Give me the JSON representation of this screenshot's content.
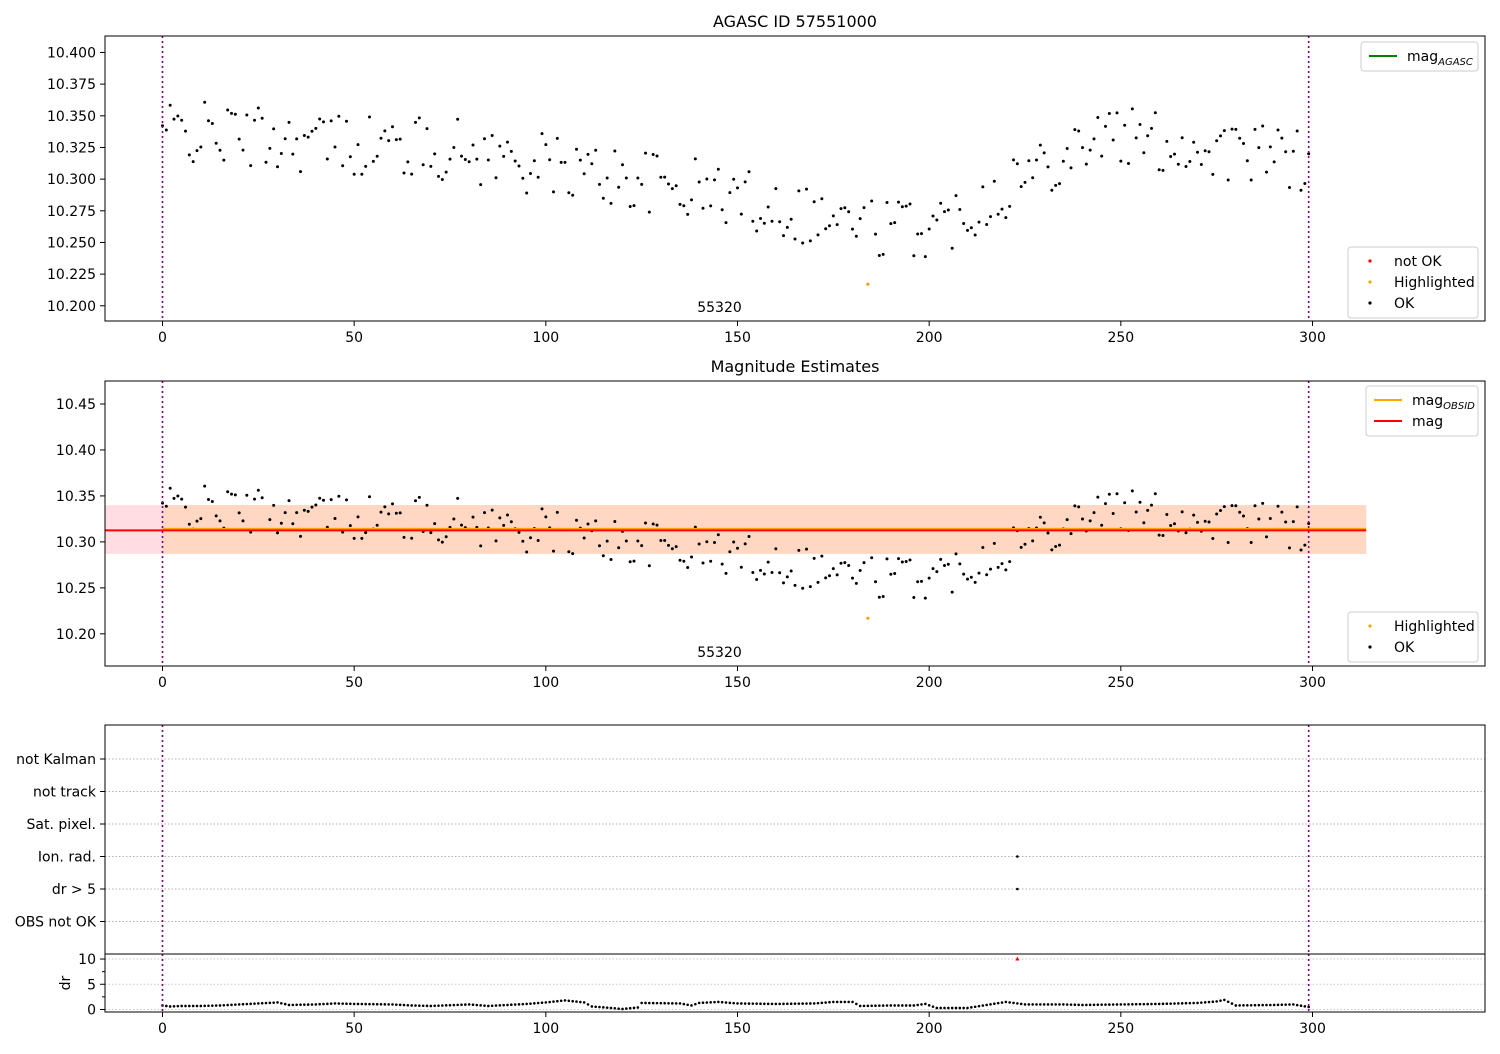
{
  "chart_data": [
    {
      "type": "scatter",
      "title": "AGASC ID 57551000",
      "xlim": [
        -15,
        345
      ],
      "ylim": [
        10.188,
        10.413
      ],
      "x_ticks": [
        "0",
        "50",
        "100",
        "150",
        "200",
        "250",
        "300"
      ],
      "y_ticks": [
        "10.200",
        "10.225",
        "10.250",
        "10.275",
        "10.300",
        "10.325",
        "10.350",
        "10.375",
        "10.400"
      ],
      "vlines": [
        0,
        299
      ],
      "obsid_label": {
        "text": "55320",
        "x": 150
      },
      "legend_upper": [
        {
          "label": "mag",
          "sub": "AGASC",
          "color": "#008000",
          "kind": "line"
        }
      ],
      "legend_lower": [
        {
          "label": "not OK",
          "color": "#ff0000",
          "kind": "dot"
        },
        {
          "label": "Highlighted",
          "color": "#ffa500",
          "kind": "dot"
        },
        {
          "label": "OK",
          "color": "#000000",
          "kind": "dot"
        }
      ],
      "series": [
        {
          "name": "Highlighted",
          "color": "#ffa500",
          "points": [
            [
              184,
              10.217
            ]
          ]
        }
      ]
    },
    {
      "type": "scatter",
      "title": "Magnitude Estimates",
      "xlim": [
        -15,
        345
      ],
      "ylim": [
        10.165,
        10.475
      ],
      "x_ticks": [
        "0",
        "50",
        "100",
        "150",
        "200",
        "250",
        "300"
      ],
      "y_ticks": [
        "10.20",
        "10.25",
        "10.30",
        "10.35",
        "10.40",
        "10.45"
      ],
      "vlines": [
        0,
        299
      ],
      "obsid_label": {
        "text": "55320",
        "x": 150
      },
      "mag": 10.313,
      "mag_band_outer": [
        -15,
        314,
        10.287,
        10.34
      ],
      "mag_band_inner": [
        0,
        314,
        10.287,
        10.34
      ],
      "legend_upper": [
        {
          "label": "mag",
          "sub": "OBSID",
          "color": "#ffa500",
          "kind": "line"
        },
        {
          "label": "mag",
          "sub": "",
          "color": "#ff0000",
          "kind": "line"
        }
      ],
      "legend_lower": [
        {
          "label": "Highlighted",
          "color": "#ffa500",
          "kind": "dot"
        },
        {
          "label": "OK",
          "color": "#000000",
          "kind": "dot"
        }
      ],
      "series": [
        {
          "name": "Highlighted",
          "color": "#ffa500",
          "points": [
            [
              184,
              10.217
            ]
          ]
        }
      ]
    },
    {
      "type": "scatter",
      "xlim": [
        -15,
        345
      ],
      "x_ticks": [
        "0",
        "50",
        "100",
        "150",
        "200",
        "250",
        "300"
      ],
      "vlines": [
        0,
        299
      ],
      "flag_rows": [
        "not Kalman",
        "not track",
        "Sat. pixel.",
        "Ion. rad.",
        "dr > 5",
        "OBS not OK"
      ],
      "flag_points": [
        {
          "row": "Ion. rad.",
          "x": 223
        },
        {
          "row": "dr > 5",
          "x": 223
        }
      ],
      "dr": {
        "ylabel": "dr",
        "ylim": [
          -0.5,
          11
        ],
        "y_ticks": [
          "0",
          "5",
          "10"
        ],
        "red_points": [
          [
            223,
            10
          ]
        ],
        "points": [
          [
            0,
            0.8
          ],
          [
            2,
            0.6
          ],
          [
            5,
            0.7
          ],
          [
            10,
            0.7
          ],
          [
            15,
            0.8
          ],
          [
            20,
            1.0
          ],
          [
            25,
            1.2
          ],
          [
            30,
            1.4
          ],
          [
            33,
            0.9
          ],
          [
            40,
            1.0
          ],
          [
            45,
            1.2
          ],
          [
            50,
            1.1
          ],
          [
            60,
            1.0
          ],
          [
            65,
            0.8
          ],
          [
            70,
            0.7
          ],
          [
            80,
            1.0
          ],
          [
            85,
            0.7
          ],
          [
            90,
            0.9
          ],
          [
            95,
            1.1
          ],
          [
            100,
            1.4
          ],
          [
            105,
            1.8
          ],
          [
            110,
            1.4
          ],
          [
            112,
            0.6
          ],
          [
            117,
            0.3
          ],
          [
            120,
            0.1
          ],
          [
            124,
            0.4
          ],
          [
            125,
            1.3
          ],
          [
            135,
            1.2
          ],
          [
            138,
            0.8
          ],
          [
            140,
            1.3
          ],
          [
            145,
            1.5
          ],
          [
            150,
            1.2
          ],
          [
            160,
            1.1
          ],
          [
            170,
            1.2
          ],
          [
            175,
            1.5
          ],
          [
            180,
            1.5
          ],
          [
            182,
            0.7
          ],
          [
            190,
            0.8
          ],
          [
            196,
            0.8
          ],
          [
            199,
            1.1
          ],
          [
            202,
            0.3
          ],
          [
            210,
            0.3
          ],
          [
            215,
            0.9
          ],
          [
            220,
            1.5
          ],
          [
            225,
            1.0
          ],
          [
            235,
            1.0
          ],
          [
            240,
            0.9
          ],
          [
            250,
            1.0
          ],
          [
            260,
            1.1
          ],
          [
            265,
            1.2
          ],
          [
            270,
            1.3
          ],
          [
            275,
            1.6
          ],
          [
            277,
            1.9
          ],
          [
            280,
            0.8
          ],
          [
            290,
            0.9
          ],
          [
            295,
            1.0
          ],
          [
            299,
            0.5
          ]
        ]
      }
    }
  ]
}
